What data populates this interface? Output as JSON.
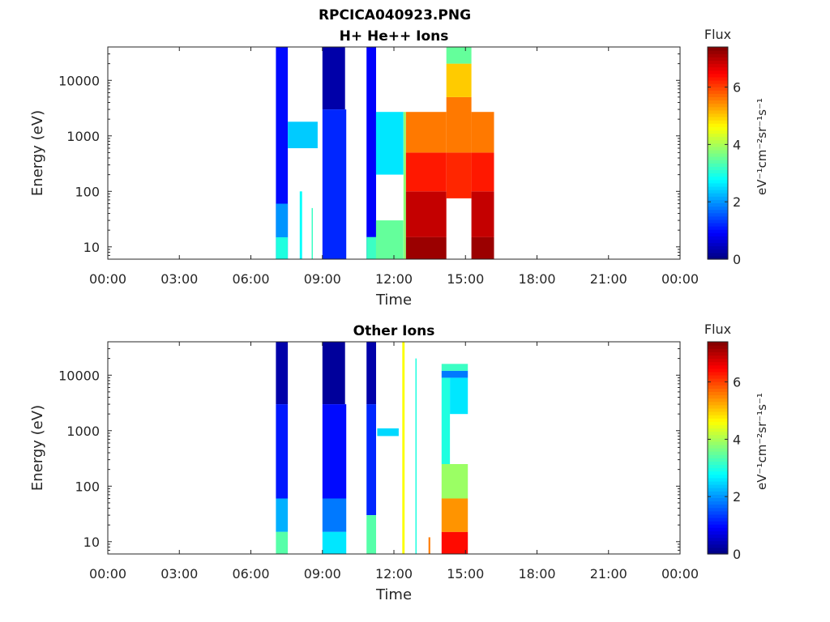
{
  "figure": {
    "title": "RPCICA040923.PNG"
  },
  "chart_data": [
    {
      "type": "heatmap",
      "title": "H+ He++ Ions",
      "xlabel": "Time",
      "ylabel": "Energy (eV)",
      "x_tick_labels": [
        "00:00",
        "03:00",
        "06:00",
        "09:00",
        "12:00",
        "15:00",
        "18:00",
        "21:00",
        "00:00"
      ],
      "x_tick_hours": [
        0,
        3,
        6,
        9,
        12,
        15,
        18,
        21,
        24
      ],
      "xlim_hours": [
        0,
        24
      ],
      "y_scale": "log",
      "y_tick_labels": [
        "10",
        "100",
        "1000",
        "10000"
      ],
      "y_tick_values": [
        10,
        100,
        1000,
        10000
      ],
      "ylim": [
        6,
        40000
      ],
      "colorbar": {
        "label": "Flux",
        "units": "eV⁻¹cm⁻²sr⁻¹s⁻¹",
        "ticks": [
          "0",
          "2",
          "4",
          "6"
        ],
        "tick_values": [
          0,
          2,
          4,
          6
        ],
        "range": [
          0,
          7.4
        ],
        "colormap": "jet"
      },
      "blocks": [
        {
          "t0": 7.05,
          "t1": 7.55,
          "e0": 6,
          "e1": 40000,
          "flux": 1.0
        },
        {
          "t0": 7.05,
          "t1": 7.55,
          "e0": 6,
          "e1": 15,
          "flux": 3.0
        },
        {
          "t0": 7.05,
          "t1": 7.55,
          "e0": 15,
          "e1": 60,
          "flux": 2.0
        },
        {
          "t0": 7.55,
          "t1": 8.8,
          "e0": 600,
          "e1": 1800,
          "flux": 2.4
        },
        {
          "t0": 8.05,
          "t1": 8.15,
          "e0": 6,
          "e1": 100,
          "flux": 2.8
        },
        {
          "t0": 8.55,
          "t1": 8.6,
          "e0": 6,
          "e1": 50,
          "flux": 3.2
        },
        {
          "t0": 9.0,
          "t1": 9.95,
          "e0": 3000,
          "e1": 40000,
          "flux": 0.3
        },
        {
          "t0": 9.0,
          "t1": 10.0,
          "e0": 6,
          "e1": 3000,
          "flux": 1.2
        },
        {
          "t0": 10.85,
          "t1": 11.25,
          "e0": 6,
          "e1": 40000,
          "flux": 0.9
        },
        {
          "t0": 10.85,
          "t1": 11.25,
          "e0": 6,
          "e1": 15,
          "flux": 3.2
        },
        {
          "t0": 11.25,
          "t1": 12.4,
          "e0": 200,
          "e1": 2700,
          "flux": 2.6
        },
        {
          "t0": 11.25,
          "t1": 12.4,
          "e0": 6,
          "e1": 30,
          "flux": 3.5
        },
        {
          "t0": 12.5,
          "t1": 14.2,
          "e0": 6,
          "e1": 15,
          "flux": 7.2
        },
        {
          "t0": 12.5,
          "t1": 14.2,
          "e0": 15,
          "e1": 100,
          "flux": 6.9
        },
        {
          "t0": 12.5,
          "t1": 14.2,
          "e0": 100,
          "e1": 500,
          "flux": 6.3
        },
        {
          "t0": 12.5,
          "t1": 14.2,
          "e0": 500,
          "e1": 2700,
          "flux": 5.6
        },
        {
          "t0": 14.2,
          "t1": 15.25,
          "e0": 75,
          "e1": 500,
          "flux": 6.2
        },
        {
          "t0": 14.2,
          "t1": 15.25,
          "e0": 500,
          "e1": 5000,
          "flux": 5.6
        },
        {
          "t0": 14.2,
          "t1": 15.25,
          "e0": 5000,
          "e1": 20000,
          "flux": 5.0
        },
        {
          "t0": 14.2,
          "t1": 15.25,
          "e0": 20000,
          "e1": 40000,
          "flux": 3.5
        },
        {
          "t0": 15.25,
          "t1": 16.2,
          "e0": 6,
          "e1": 15,
          "flux": 7.2
        },
        {
          "t0": 15.25,
          "t1": 16.2,
          "e0": 15,
          "e1": 100,
          "flux": 6.9
        },
        {
          "t0": 15.25,
          "t1": 16.2,
          "e0": 100,
          "e1": 500,
          "flux": 6.3
        },
        {
          "t0": 15.25,
          "t1": 16.2,
          "e0": 500,
          "e1": 2700,
          "flux": 5.6
        },
        {
          "t0": 12.4,
          "t1": 12.5,
          "e0": 6,
          "e1": 2700,
          "flux": 3.8
        }
      ]
    },
    {
      "type": "heatmap",
      "title": "Other Ions",
      "xlabel": "Time",
      "ylabel": "Energy (eV)",
      "x_tick_labels": [
        "00:00",
        "03:00",
        "06:00",
        "09:00",
        "12:00",
        "15:00",
        "18:00",
        "21:00",
        "00:00"
      ],
      "x_tick_hours": [
        0,
        3,
        6,
        9,
        12,
        15,
        18,
        21,
        24
      ],
      "xlim_hours": [
        0,
        24
      ],
      "y_scale": "log",
      "y_tick_labels": [
        "10",
        "100",
        "1000",
        "10000"
      ],
      "y_tick_values": [
        10,
        100,
        1000,
        10000
      ],
      "ylim": [
        6,
        40000
      ],
      "colorbar": {
        "label": "Flux",
        "units": "eV⁻¹cm⁻²sr⁻¹s⁻¹",
        "ticks": [
          "0",
          "2",
          "4",
          "6"
        ],
        "tick_values": [
          0,
          2,
          4,
          6
        ],
        "range": [
          0,
          7.4
        ],
        "colormap": "jet"
      },
      "blocks": [
        {
          "t0": 7.05,
          "t1": 7.55,
          "e0": 3000,
          "e1": 40000,
          "flux": 0.3
        },
        {
          "t0": 7.05,
          "t1": 7.55,
          "e0": 60,
          "e1": 3000,
          "flux": 1.1
        },
        {
          "t0": 7.05,
          "t1": 7.55,
          "e0": 15,
          "e1": 60,
          "flux": 2.2
        },
        {
          "t0": 7.05,
          "t1": 7.55,
          "e0": 6,
          "e1": 15,
          "flux": 3.4
        },
        {
          "t0": 9.0,
          "t1": 9.95,
          "e0": 3000,
          "e1": 40000,
          "flux": 0.2
        },
        {
          "t0": 9.0,
          "t1": 10.0,
          "e0": 60,
          "e1": 3000,
          "flux": 1.0
        },
        {
          "t0": 9.0,
          "t1": 10.0,
          "e0": 15,
          "e1": 60,
          "flux": 1.8
        },
        {
          "t0": 9.0,
          "t1": 10.0,
          "e0": 6,
          "e1": 15,
          "flux": 2.6
        },
        {
          "t0": 10.85,
          "t1": 11.25,
          "e0": 3000,
          "e1": 40000,
          "flux": 0.3
        },
        {
          "t0": 10.85,
          "t1": 11.25,
          "e0": 30,
          "e1": 3000,
          "flux": 1.2
        },
        {
          "t0": 10.85,
          "t1": 11.25,
          "e0": 6,
          "e1": 30,
          "flux": 3.4
        },
        {
          "t0": 11.3,
          "t1": 12.2,
          "e0": 800,
          "e1": 1100,
          "flux": 2.5
        },
        {
          "t0": 12.35,
          "t1": 12.45,
          "e0": 6,
          "e1": 40000,
          "flux": 4.6
        },
        {
          "t0": 12.9,
          "t1": 12.95,
          "e0": 6,
          "e1": 20000,
          "flux": 3.0
        },
        {
          "t0": 13.45,
          "t1": 13.52,
          "e0": 6,
          "e1": 12,
          "flux": 5.6
        },
        {
          "t0": 14.0,
          "t1": 15.1,
          "e0": 6,
          "e1": 15,
          "flux": 6.4
        },
        {
          "t0": 14.0,
          "t1": 15.1,
          "e0": 15,
          "e1": 60,
          "flux": 5.4
        },
        {
          "t0": 14.0,
          "t1": 15.1,
          "e0": 60,
          "e1": 250,
          "flux": 3.9
        },
        {
          "t0": 14.0,
          "t1": 14.35,
          "e0": 250,
          "e1": 9000,
          "flux": 3.0
        },
        {
          "t0": 14.35,
          "t1": 15.1,
          "e0": 2000,
          "e1": 9000,
          "flux": 2.6
        },
        {
          "t0": 14.0,
          "t1": 15.1,
          "e0": 9000,
          "e1": 12000,
          "flux": 1.8
        },
        {
          "t0": 14.0,
          "t1": 15.1,
          "e0": 12000,
          "e1": 16000,
          "flux": 3.2
        }
      ]
    }
  ]
}
